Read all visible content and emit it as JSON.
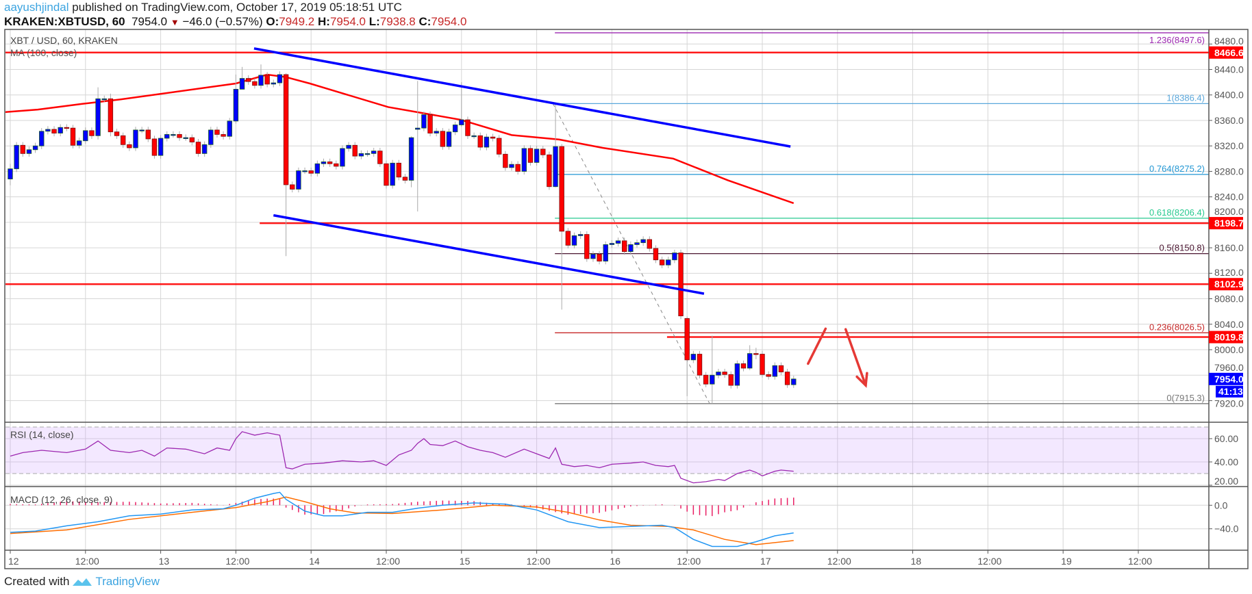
{
  "header": {
    "author": "aayushjindal",
    "published": "published on TradingView.com, October 17, 2019 05:18:51 UTC",
    "symbol": "KRAKEN:XBTUSD, 60",
    "last": "7954.0",
    "change": "−46.0 (−0.57%)",
    "o_label": "O:",
    "o": "7949.2",
    "h_label": "H:",
    "h": "7954.0",
    "l_label": "L:",
    "l": "7938.8",
    "c_label": "C:",
    "c": "7954.0"
  },
  "legend": {
    "series": "XBT / USD, 60, KRAKEN",
    "ma": "MA (100, close)",
    "rsi": "RSI (14, close)",
    "macd": "MACD (12, 26, close, 9)"
  },
  "footer": {
    "created_with": "Created with",
    "brand": "TradingView"
  },
  "colors": {
    "up": "#0000ff",
    "down": "#ff0000",
    "ma": "#ff0000",
    "trendline": "#0000ff",
    "support_resistance": "#ff0000",
    "rsi": "#9c27b0",
    "macd": "#2196f3",
    "signal": "#ff6d00",
    "histogram": "#e91e63"
  },
  "chart_data": {
    "type": "candlestick",
    "title": "XBT / USD, 60, KRAKEN",
    "interval_hours": 1,
    "start": "Oct 12 00:00",
    "closes": [
      8284,
      8321,
      8308,
      8314,
      8320,
      8343,
      8346,
      8340,
      8349,
      8348,
      8321,
      8328,
      8344,
      8336,
      8394,
      8394,
      8342,
      8336,
      8322,
      8317,
      8345,
      8345,
      8331,
      8305,
      8332,
      8338,
      8338,
      8333,
      8333,
      8326,
      8308,
      8322,
      8345,
      8338,
      8335,
      8359,
      8409,
      8426,
      8421,
      8415,
      8431,
      8417,
      8419,
      8432,
      8259,
      8252,
      8281,
      8281,
      8277,
      8292,
      8295,
      8292,
      8288,
      8316,
      8321,
      8304,
      8308,
      8308,
      8312,
      8292,
      8258,
      8293,
      8271,
      8266,
      8333,
      8348,
      8369,
      8340,
      8343,
      8319,
      8342,
      8353,
      8361,
      8336,
      8336,
      8318,
      8334,
      8332,
      8307,
      8286,
      8291,
      8280,
      8316,
      8294,
      8315,
      8306,
      8256,
      8319,
      8186,
      8164,
      8179,
      8181,
      8143,
      8150,
      8139,
      8165,
      8167,
      8171,
      8154,
      8165,
      8168,
      8173,
      8159,
      8141,
      8133,
      8141,
      8152,
      8053,
      7984,
      7993,
      7960,
      7946,
      7960,
      7965,
      7961,
      7944,
      7978,
      7971,
      7994,
      7993,
      7961,
      7958,
      7975,
      7965,
      7945,
      7954
    ],
    "first_open": 8268,
    "open_overrides": {
      "66": 8346,
      "109": 8049
    },
    "wick_extremes": {
      "1": [
        8292,
        8258
      ],
      "15": [
        8412,
        8330
      ],
      "17": [
        8402,
        8335
      ],
      "37": [
        8432,
        8355
      ],
      "38": [
        8444,
        8410
      ],
      "41": [
        8448,
        8410
      ],
      "45": [
        8434,
        8147
      ],
      "65": [
        8335,
        8255
      ],
      "66": [
        8422,
        8217
      ],
      "73": [
        8420,
        8350
      ],
      "88": [
        8386.4,
        8255
      ],
      "89": [
        8323,
        8063
      ],
      "109": [
        8052,
        7927
      ],
      "113": [
        8022,
        7915.3
      ],
      "119": [
        8007,
        7968
      ],
      "120": [
        8003,
        7985
      ]
    },
    "ma100": [
      [
        -1,
        8373
      ],
      [
        4.4,
        8377
      ],
      [
        11.5,
        8386
      ],
      [
        17.6,
        8393
      ],
      [
        36,
        8418
      ],
      [
        41,
        8432
      ],
      [
        44,
        8428
      ],
      [
        47.8,
        8418
      ],
      [
        60.3,
        8381
      ],
      [
        71.9,
        8361
      ],
      [
        80,
        8337
      ],
      [
        87.6,
        8330
      ],
      [
        94.5,
        8317
      ],
      [
        105.8,
        8300
      ],
      [
        114.5,
        8266
      ],
      [
        125,
        8230
      ]
    ],
    "trendlines": [
      {
        "name": "upper-channel",
        "from": [
          38.9,
          8473
        ],
        "to": [
          124.5,
          8319
        ]
      },
      {
        "name": "lower-channel",
        "from": [
          42,
          8211
        ],
        "to": [
          110.7,
          8088
        ]
      }
    ],
    "horizontal_levels": [
      {
        "price": 8466.6,
        "label": "8466.6",
        "from_hour": -1
      },
      {
        "price": 8198.7,
        "label": "8198.7",
        "from_hour": 39.8
      },
      {
        "price": 8102.9,
        "label": "8102.9",
        "from_hour": -1
      },
      {
        "price": 8019.8,
        "label": "8019.8",
        "from_hour": 104.8
      }
    ],
    "fibonacci": {
      "from_hour": 86.9,
      "swing": [
        [
          87.6,
          8386.4
        ],
        [
          112.6,
          7915.3
        ]
      ],
      "levels": [
        {
          "ratio": "1.236",
          "price": 8497.6,
          "label": "1.236(8497.6)",
          "color": "#9c27b0"
        },
        {
          "ratio": "1",
          "price": 8386.4,
          "label": "1(8386.4)",
          "color": "#5aa7db"
        },
        {
          "ratio": "0.764",
          "price": 8275.2,
          "label": "0.764(8275.2)",
          "color": "#2196d3"
        },
        {
          "ratio": "0.618",
          "price": 8206.4,
          "label": "0.618(8206.4)",
          "color": "#26c98f"
        },
        {
          "ratio": "0.5",
          "price": 8150.8,
          "label": "0.5(8150.8)",
          "color": "#4a1530"
        },
        {
          "ratio": "0.236",
          "price": 8026.5,
          "label": "0.236(8026.5)",
          "color": "#c62828"
        },
        {
          "ratio": "0",
          "price": 7915.3,
          "label": "0(7915.3)",
          "color": "#777777"
        }
      ]
    },
    "projection_arrows": [
      {
        "from": [
          127.3,
          7978
        ],
        "to": [
          130.1,
          8033
        ]
      },
      {
        "from": [
          133.3,
          8032
        ],
        "to": [
          136.5,
          7944
        ]
      }
    ],
    "price_axis": {
      "ticks": [
        "8480.0",
        "8440.0",
        "8400.0",
        "8360.0",
        "8320.0",
        "8280.0",
        "8240.0",
        "8200.0",
        "8160.0",
        "8120.0",
        "8080.0",
        "8040.0",
        "8000.0",
        "7960.0",
        "7920.0"
      ],
      "tick_values": [
        8480,
        8440,
        8400,
        8360,
        8320,
        8280,
        8240,
        8200,
        8160,
        8120,
        8080,
        8040,
        8000,
        7960,
        7920
      ],
      "last_price": "7954.0",
      "countdown": "41:13"
    },
    "time_axis": {
      "labels": [
        "12",
        "12:00",
        "13",
        "12:00",
        "14",
        "12:00",
        "15",
        "12:00",
        "16",
        "12:00",
        "17",
        "12:00",
        "18",
        "12:00",
        "19",
        "12:00"
      ],
      "step_hours": 12
    },
    "rsi": {
      "ticks": [
        "60.00",
        "40.00",
        "20.00"
      ],
      "tick_values": [
        60,
        40,
        20
      ],
      "band": [
        30,
        70
      ],
      "points": [
        [
          1,
          45
        ],
        [
          3,
          48
        ],
        [
          6,
          50
        ],
        [
          10,
          48
        ],
        [
          13,
          51
        ],
        [
          15,
          58
        ],
        [
          17,
          50
        ],
        [
          20,
          48
        ],
        [
          22,
          50
        ],
        [
          24,
          45
        ],
        [
          26,
          52
        ],
        [
          29,
          51
        ],
        [
          32,
          47
        ],
        [
          34,
          52
        ],
        [
          36,
          50
        ],
        [
          37,
          60
        ],
        [
          38,
          66
        ],
        [
          40,
          63
        ],
        [
          42,
          65
        ],
        [
          44,
          63
        ],
        [
          45,
          35
        ],
        [
          46,
          34
        ],
        [
          48,
          38
        ],
        [
          51,
          39
        ],
        [
          54,
          41
        ],
        [
          57,
          40
        ],
        [
          59,
          41
        ],
        [
          61,
          37
        ],
        [
          63,
          46
        ],
        [
          65,
          50
        ],
        [
          66,
          56
        ],
        [
          67,
          60
        ],
        [
          68,
          55
        ],
        [
          70,
          54
        ],
        [
          72,
          58
        ],
        [
          74,
          53
        ],
        [
          76,
          50
        ],
        [
          78,
          48
        ],
        [
          80,
          44
        ],
        [
          83,
          51
        ],
        [
          85,
          47
        ],
        [
          87,
          43
        ],
        [
          88,
          52
        ],
        [
          89,
          38
        ],
        [
          91,
          36
        ],
        [
          93,
          37
        ],
        [
          95,
          35
        ],
        [
          97,
          38
        ],
        [
          100,
          39
        ],
        [
          102,
          40
        ],
        [
          104,
          37
        ],
        [
          106,
          36
        ],
        [
          107,
          37
        ],
        [
          108,
          26
        ],
        [
          110,
          22
        ],
        [
          112,
          23
        ],
        [
          114,
          25
        ],
        [
          115,
          24
        ],
        [
          117,
          30
        ],
        [
          119,
          33
        ],
        [
          120,
          31
        ],
        [
          121,
          28
        ],
        [
          123,
          32
        ],
        [
          124,
          33
        ],
        [
          126,
          32
        ]
      ]
    },
    "macd": {
      "ticks": [
        "0.0",
        "−40.0"
      ],
      "tick_values": [
        0,
        -40
      ],
      "macd_points": [
        [
          1,
          -46
        ],
        [
          5,
          -44
        ],
        [
          10,
          -35
        ],
        [
          15,
          -28
        ],
        [
          20,
          -18
        ],
        [
          25,
          -15
        ],
        [
          30,
          -8
        ],
        [
          35,
          -6
        ],
        [
          37,
          0
        ],
        [
          40,
          12
        ],
        [
          43,
          20
        ],
        [
          44,
          22
        ],
        [
          45,
          10
        ],
        [
          48,
          -10
        ],
        [
          51,
          -18
        ],
        [
          54,
          -18
        ],
        [
          58,
          -12
        ],
        [
          62,
          -12
        ],
        [
          66,
          -5
        ],
        [
          70,
          0
        ],
        [
          75,
          4
        ],
        [
          80,
          2
        ],
        [
          85,
          -8
        ],
        [
          90,
          -28
        ],
        [
          95,
          -38
        ],
        [
          100,
          -36
        ],
        [
          105,
          -34
        ],
        [
          107,
          -38
        ],
        [
          110,
          -58
        ],
        [
          113,
          -70
        ],
        [
          117,
          -70
        ],
        [
          120,
          -62
        ],
        [
          123,
          -52
        ],
        [
          126,
          -47
        ]
      ],
      "signal_points": [
        [
          1,
          -48
        ],
        [
          10,
          -42
        ],
        [
          20,
          -24
        ],
        [
          30,
          -12
        ],
        [
          37,
          -4
        ],
        [
          42,
          6
        ],
        [
          45,
          14
        ],
        [
          48,
          6
        ],
        [
          52,
          -6
        ],
        [
          56,
          -13
        ],
        [
          62,
          -14
        ],
        [
          70,
          -8
        ],
        [
          78,
          0
        ],
        [
          85,
          -3
        ],
        [
          90,
          -12
        ],
        [
          95,
          -25
        ],
        [
          100,
          -34
        ],
        [
          106,
          -36
        ],
        [
          110,
          -42
        ],
        [
          115,
          -58
        ],
        [
          120,
          -67
        ],
        [
          126,
          -60
        ]
      ]
    }
  }
}
